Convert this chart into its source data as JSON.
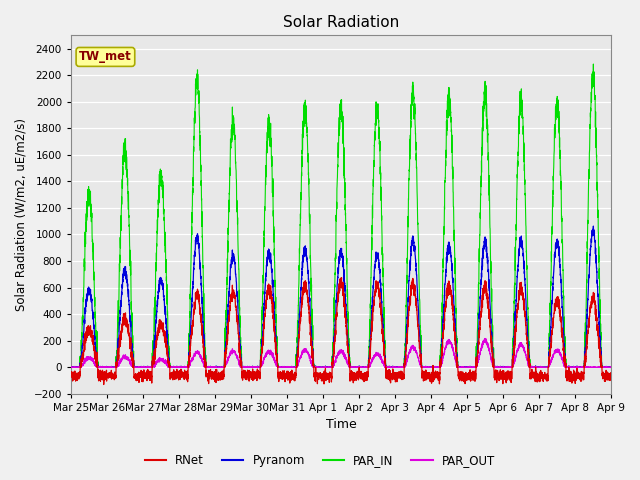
{
  "title": "Solar Radiation",
  "ylabel": "Solar Radiation (W/m2, uE/m2/s)",
  "xlabel": "Time",
  "ylim": [
    -200,
    2500
  ],
  "yticks": [
    -200,
    0,
    200,
    400,
    600,
    800,
    1000,
    1200,
    1400,
    1600,
    1800,
    2000,
    2200,
    2400
  ],
  "x_labels": [
    "Mar 25",
    "Mar 26",
    "Mar 27",
    "Mar 28",
    "Mar 29",
    "Mar 30",
    "Mar 31",
    "Apr 1",
    "Apr 2",
    "Apr 3",
    "Apr 4",
    "Apr 5",
    "Apr 6",
    "Apr 7",
    "Apr 8",
    "Apr 9"
  ],
  "annotation_text": "TW_met",
  "annotation_bg": "#ffff99",
  "annotation_border": "#aaaa00",
  "colors": {
    "RNet": "#dd0000",
    "Pyranom": "#0000dd",
    "PAR_IN": "#00dd00",
    "PAR_OUT": "#dd00dd"
  },
  "legend_entries": [
    "RNet",
    "Pyranom",
    "PAR_IN",
    "PAR_OUT"
  ],
  "fig_bg": "#f0f0f0",
  "plot_bg": "#e8e8e8",
  "n_days": 15,
  "pts_per_day": 288,
  "par_in_peaks": [
    1300,
    1650,
    1450,
    2150,
    1850,
    1850,
    1950,
    1950,
    1950,
    2050,
    2050,
    2050,
    2000,
    2000,
    2200
  ],
  "pyranom_peaks": [
    580,
    730,
    660,
    970,
    840,
    870,
    890,
    870,
    850,
    950,
    920,
    940,
    950,
    950,
    1030
  ],
  "rnet_peaks": [
    280,
    370,
    330,
    540,
    560,
    600,
    620,
    640,
    620,
    620,
    620,
    600,
    590,
    510,
    520
  ],
  "par_out_peaks": [
    70,
    80,
    60,
    110,
    120,
    120,
    130,
    120,
    100,
    150,
    200,
    200,
    170,
    130,
    0
  ]
}
